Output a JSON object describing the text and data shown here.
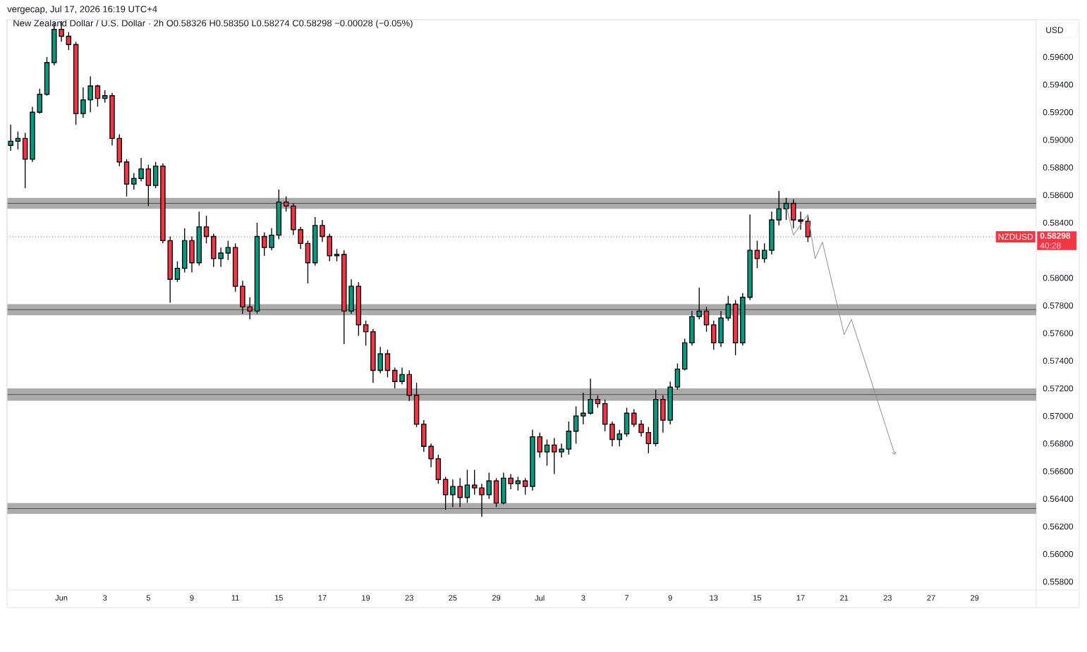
{
  "chart_data": {
    "type": "candlestick",
    "title": "New Zealand Dollar / U.S. Dollar · 2h O0.58326 H0.58350 L0.58274 C0.58298 −0.00028 (−0.05%)",
    "ylabel": "USD",
    "annotations": [
      "vergecap, Jul 17, 2026 16:19 UTC+4",
      "0.58298",
      "40:28"
    ],
    "categories": [
      null,
      null,
      null,
      null,
      null,
      null,
      null,
      "Jun",
      null,
      null,
      null,
      null,
      null,
      "3",
      null,
      null,
      null,
      null,
      null,
      "5",
      null,
      null,
      null,
      null,
      null,
      "9",
      null,
      null,
      null,
      null,
      null,
      "11",
      null,
      null,
      null,
      null,
      null,
      "15",
      null,
      null,
      null,
      null,
      null,
      "17",
      null,
      null,
      null,
      null,
      null,
      "19",
      null,
      null,
      null,
      null,
      null,
      "23",
      null,
      null,
      null,
      null,
      null,
      "25",
      null,
      null,
      null,
      null,
      null,
      "29",
      null,
      null,
      null,
      null,
      null,
      "Jul",
      null,
      null,
      null,
      null,
      null,
      "3",
      null,
      null,
      null,
      null,
      null,
      "7",
      null,
      null,
      null,
      null,
      null,
      "9",
      null,
      null,
      null,
      null,
      null,
      "13",
      null,
      null,
      null,
      null,
      null,
      "15",
      null,
      null,
      null,
      null,
      null,
      "17",
      null,
      null,
      null,
      null,
      null,
      "21",
      null,
      null,
      null,
      null,
      null,
      "23",
      null,
      null,
      null,
      null,
      null,
      "27",
      null,
      null,
      null,
      null,
      null,
      "29",
      null,
      null,
      null,
      null,
      null,
      null,
      null,
      null
    ],
    "ohlc": [
      [
        0.5896,
        0.5911,
        0.5892,
        0.5899
      ],
      [
        0.5899,
        0.5906,
        0.5893,
        0.5901
      ],
      [
        0.5901,
        0.5905,
        0.5865,
        0.5886
      ],
      [
        0.5886,
        0.5924,
        0.5884,
        0.592
      ],
      [
        0.592,
        0.5937,
        0.5919,
        0.5933
      ],
      [
        0.5933,
        0.596,
        0.5932,
        0.5956
      ],
      [
        0.5956,
        0.5985,
        0.5954,
        0.598
      ],
      [
        0.598,
        0.5986,
        0.5971,
        0.5975
      ],
      [
        0.5975,
        0.5978,
        0.5965,
        0.5969
      ],
      [
        0.5969,
        0.5971,
        0.5911,
        0.5919
      ],
      [
        0.5919,
        0.5938,
        0.5916,
        0.5929
      ],
      [
        0.5929,
        0.5946,
        0.592,
        0.5939
      ],
      [
        0.5939,
        0.594,
        0.5924,
        0.593
      ],
      [
        0.593,
        0.5936,
        0.5927,
        0.5932
      ],
      [
        0.5932,
        0.5934,
        0.5896,
        0.5901
      ],
      [
        0.5901,
        0.5904,
        0.5881,
        0.5884
      ],
      [
        0.5884,
        0.5886,
        0.5859,
        0.5868
      ],
      [
        0.5868,
        0.5876,
        0.5864,
        0.5872
      ],
      [
        0.5872,
        0.5887,
        0.587,
        0.5879
      ],
      [
        0.5879,
        0.5882,
        0.5852,
        0.5867
      ],
      [
        0.5867,
        0.5884,
        0.5865,
        0.5881
      ],
      [
        0.5881,
        0.5883,
        0.5825,
        0.5827
      ],
      [
        0.5827,
        0.583,
        0.5782,
        0.5799
      ],
      [
        0.5799,
        0.5812,
        0.5797,
        0.5807
      ],
      [
        0.5807,
        0.5836,
        0.5804,
        0.5827
      ],
      [
        0.5827,
        0.583,
        0.5804,
        0.5811
      ],
      [
        0.5811,
        0.5848,
        0.5809,
        0.5837
      ],
      [
        0.5837,
        0.5845,
        0.5825,
        0.583
      ],
      [
        0.583,
        0.5832,
        0.5808,
        0.5814
      ],
      [
        0.5814,
        0.5822,
        0.5808,
        0.5818
      ],
      [
        0.5818,
        0.5827,
        0.5813,
        0.5822
      ],
      [
        0.5822,
        0.5825,
        0.579,
        0.5794
      ],
      [
        0.5794,
        0.5798,
        0.5774,
        0.5779
      ],
      [
        0.5779,
        0.5786,
        0.577,
        0.5776
      ],
      [
        0.5776,
        0.584,
        0.5774,
        0.583
      ],
      [
        0.583,
        0.5833,
        0.5816,
        0.5822
      ],
      [
        0.5822,
        0.5836,
        0.582,
        0.5831
      ],
      [
        0.5831,
        0.5864,
        0.5828,
        0.5855
      ],
      [
        0.5855,
        0.5859,
        0.5848,
        0.5852
      ],
      [
        0.5852,
        0.5854,
        0.5831,
        0.5835
      ],
      [
        0.5835,
        0.5837,
        0.5821,
        0.5825
      ],
      [
        0.5825,
        0.5827,
        0.5796,
        0.5811
      ],
      [
        0.5811,
        0.5844,
        0.5809,
        0.5838
      ],
      [
        0.5838,
        0.5842,
        0.5826,
        0.583
      ],
      [
        0.583,
        0.5832,
        0.5812,
        0.5816
      ],
      [
        0.5816,
        0.5821,
        0.5812,
        0.5817
      ],
      [
        0.5817,
        0.582,
        0.5752,
        0.5776
      ],
      [
        0.5776,
        0.5799,
        0.5774,
        0.5794
      ],
      [
        0.5794,
        0.5797,
        0.5758,
        0.5766
      ],
      [
        0.5766,
        0.5769,
        0.5751,
        0.5761
      ],
      [
        0.5761,
        0.5763,
        0.5724,
        0.5733
      ],
      [
        0.5733,
        0.575,
        0.5731,
        0.5745
      ],
      [
        0.5745,
        0.5748,
        0.5728,
        0.5733
      ],
      [
        0.5733,
        0.5735,
        0.572,
        0.5725
      ],
      [
        0.5725,
        0.5735,
        0.5723,
        0.573
      ],
      [
        0.573,
        0.5733,
        0.5711,
        0.5715
      ],
      [
        0.5715,
        0.5724,
        0.5692,
        0.5694
      ],
      [
        0.5694,
        0.5697,
        0.5674,
        0.5678
      ],
      [
        0.5678,
        0.568,
        0.5663,
        0.5669
      ],
      [
        0.5669,
        0.5672,
        0.5651,
        0.5654
      ],
      [
        0.5654,
        0.5656,
        0.5632,
        0.5643
      ],
      [
        0.5643,
        0.5654,
        0.5634,
        0.5649
      ],
      [
        0.5649,
        0.5655,
        0.5634,
        0.5641
      ],
      [
        0.5641,
        0.5661,
        0.5637,
        0.565
      ],
      [
        0.565,
        0.5661,
        0.5643,
        0.5648
      ],
      [
        0.5648,
        0.5651,
        0.5627,
        0.5643
      ],
      [
        0.5643,
        0.5659,
        0.564,
        0.5653
      ],
      [
        0.5653,
        0.5655,
        0.5634,
        0.5637
      ],
      [
        0.5637,
        0.5659,
        0.5636,
        0.5655
      ],
      [
        0.5655,
        0.5658,
        0.5647,
        0.5651
      ],
      [
        0.5651,
        0.5656,
        0.5646,
        0.5653
      ],
      [
        0.5653,
        0.5655,
        0.5643,
        0.5649
      ],
      [
        0.5649,
        0.569,
        0.5646,
        0.5685
      ],
      [
        0.5685,
        0.5688,
        0.567,
        0.5674
      ],
      [
        0.5674,
        0.5683,
        0.5664,
        0.5679
      ],
      [
        0.5679,
        0.5684,
        0.5658,
        0.5674
      ],
      [
        0.5674,
        0.568,
        0.567,
        0.5676
      ],
      [
        0.5676,
        0.5696,
        0.5672,
        0.5689
      ],
      [
        0.5689,
        0.5707,
        0.568,
        0.57
      ],
      [
        0.57,
        0.5717,
        0.5694,
        0.5702
      ],
      [
        0.5702,
        0.5727,
        0.5701,
        0.5712
      ],
      [
        0.5712,
        0.5715,
        0.5706,
        0.5709
      ],
      [
        0.5709,
        0.5712,
        0.5689,
        0.5694
      ],
      [
        0.5694,
        0.5696,
        0.5678,
        0.5683
      ],
      [
        0.5683,
        0.569,
        0.5678,
        0.5687
      ],
      [
        0.5687,
        0.5706,
        0.5685,
        0.5702
      ],
      [
        0.5702,
        0.5705,
        0.5692,
        0.5694
      ],
      [
        0.5694,
        0.5697,
        0.5685,
        0.5688
      ],
      [
        0.5688,
        0.5692,
        0.5673,
        0.568
      ],
      [
        0.568,
        0.5719,
        0.5678,
        0.5712
      ],
      [
        0.5712,
        0.5715,
        0.5688,
        0.5697
      ],
      [
        0.5697,
        0.5725,
        0.5694,
        0.5721
      ],
      [
        0.5721,
        0.5738,
        0.5719,
        0.5734
      ],
      [
        0.5734,
        0.5756,
        0.5733,
        0.5753
      ],
      [
        0.5753,
        0.5776,
        0.5751,
        0.5772
      ],
      [
        0.5772,
        0.5793,
        0.577,
        0.5776
      ],
      [
        0.5776,
        0.5779,
        0.5761,
        0.5766
      ],
      [
        0.5766,
        0.5769,
        0.5748,
        0.5753
      ],
      [
        0.5753,
        0.5776,
        0.575,
        0.5771
      ],
      [
        0.5771,
        0.5787,
        0.5769,
        0.5781
      ],
      [
        0.5781,
        0.5784,
        0.5744,
        0.5753
      ],
      [
        0.5753,
        0.5789,
        0.5751,
        0.5786
      ],
      [
        0.5786,
        0.5846,
        0.5784,
        0.582
      ],
      [
        0.582,
        0.5827,
        0.5807,
        0.5814
      ],
      [
        0.5814,
        0.5825,
        0.5811,
        0.582
      ],
      [
        0.582,
        0.5848,
        0.5817,
        0.5842
      ],
      [
        0.5842,
        0.5863,
        0.5838,
        0.585
      ],
      [
        0.585,
        0.5858,
        0.5842,
        0.5854
      ],
      [
        0.5854,
        0.5857,
        0.5836,
        0.5842
      ],
      [
        0.5842,
        0.5848,
        0.5835,
        0.5841
      ],
      [
        0.5841,
        0.5845,
        0.5826,
        0.58298
      ],
      null,
      null,
      null,
      null,
      null,
      null,
      null,
      null,
      null,
      null,
      null,
      null,
      null,
      null,
      null,
      null,
      null,
      null,
      null,
      null,
      null,
      null,
      null,
      null,
      null,
      null,
      null,
      null,
      null,
      null,
      null
    ],
    "ylim": [
      0.5574,
      0.5987
    ],
    "yticks": [
      {
        "value": 0.558,
        "label": "0.55800"
      },
      {
        "value": 0.56,
        "label": "0.56000"
      },
      {
        "value": 0.562,
        "label": "0.56200"
      },
      {
        "value": 0.564,
        "label": "0.56400"
      },
      {
        "value": 0.566,
        "label": "0.56600"
      },
      {
        "value": 0.568,
        "label": "0.56800"
      },
      {
        "value": 0.57,
        "label": "0.57000"
      },
      {
        "value": 0.572,
        "label": "0.57200"
      },
      {
        "value": 0.574,
        "label": "0.57400"
      },
      {
        "value": 0.576,
        "label": "0.57600"
      },
      {
        "value": 0.578,
        "label": "0.57800"
      },
      {
        "value": 0.58,
        "label": "0.58000"
      },
      {
        "value": 0.584,
        "label": "0.58400"
      },
      {
        "value": 0.586,
        "label": "0.58600"
      },
      {
        "value": 0.588,
        "label": "0.58800"
      },
      {
        "value": 0.59,
        "label": "0.59000"
      },
      {
        "value": 0.592,
        "label": "0.59200"
      },
      {
        "value": 0.594,
        "label": "0.59400"
      },
      {
        "value": 0.596,
        "label": "0.59600"
      }
    ],
    "bands": [
      {
        "axis": "y",
        "from": 0.585,
        "to": 0.5858,
        "color": "#ababab"
      },
      {
        "axis": "y",
        "from": 0.5773,
        "to": 0.5781,
        "color": "#ababab"
      },
      {
        "axis": "y",
        "from": 0.5711,
        "to": 0.572,
        "color": "#ababab"
      },
      {
        "axis": "y",
        "from": 0.5629,
        "to": 0.5637,
        "color": "#ababab"
      }
    ],
    "ref_lines": [
      {
        "axis": "y",
        "value": 0.58298,
        "label": "NZDUSD",
        "color": "#f23645",
        "line_style": "dotted"
      }
    ],
    "series": [
      {
        "type": "line",
        "color": "#8f8f8f",
        "values": [
          null,
          null,
          null,
          null,
          null,
          null,
          null,
          null,
          null,
          null,
          null,
          null,
          null,
          null,
          null,
          null,
          null,
          null,
          null,
          null,
          null,
          null,
          null,
          null,
          null,
          null,
          null,
          null,
          null,
          null,
          null,
          null,
          null,
          null,
          null,
          null,
          null,
          null,
          null,
          null,
          null,
          null,
          null,
          null,
          null,
          null,
          null,
          null,
          null,
          null,
          null,
          null,
          null,
          null,
          null,
          null,
          null,
          null,
          null,
          null,
          null,
          null,
          null,
          null,
          null,
          null,
          null,
          null,
          null,
          null,
          null,
          null,
          null,
          null,
          null,
          null,
          null,
          null,
          null,
          null,
          null,
          null,
          null,
          null,
          null,
          null,
          null,
          null,
          null,
          null,
          null,
          null,
          null,
          null,
          null,
          null,
          null,
          null,
          null,
          null,
          null,
          null,
          null,
          null,
          null,
          null,
          null,
          0.5852,
          0.5831,
          null,
          0.5846,
          0.5814,
          0.5826,
          null,
          null,
          0.5759,
          0.577,
          null,
          null,
          null,
          null,
          null,
          0.5672,
          null,
          null,
          null,
          null,
          null,
          null,
          null,
          null,
          null,
          null,
          null,
          null,
          null,
          null,
          null,
          null,
          null,
          null,
          null
        ]
      }
    ]
  }
}
